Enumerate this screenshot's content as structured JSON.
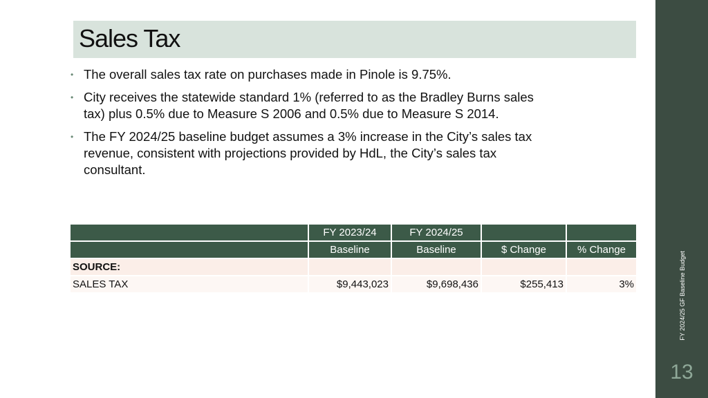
{
  "slide": {
    "title": "Sales Tax",
    "side_label": "FY 2024/25 GF Baseline Budget",
    "page_number": "13"
  },
  "bullets": [
    "The overall sales tax rate on purchases made in Pinole is 9.75%.",
    "City receives the statewide standard 1% (referred to as the Bradley Burns sales tax) plus 0.5% due to Measure S 2006 and 0.5% due to Measure S 2014.",
    "The FY 2024/25 baseline budget assumes a 3% increase in the City’s sales tax revenue, consistent with projections provided by HdL, the City’s sales tax consultant."
  ],
  "table": {
    "header_row1": [
      "",
      "FY 2023/24",
      "FY 2024/25",
      "",
      ""
    ],
    "header_row2": [
      "",
      "Baseline",
      "Baseline",
      "$ Change",
      "% Change"
    ],
    "section_label": "SOURCE:",
    "rows": [
      {
        "label": "SALES TAX",
        "fy2324": "$9,443,023",
        "fy2425": "$9,698,436",
        "change": "$255,413",
        "pct": "3%"
      }
    ]
  },
  "colors": {
    "sidebar": "#3c4c42",
    "title_band": "#d8e3dc",
    "table_header": "#3c5a48",
    "table_body": "#fbeee8"
  }
}
